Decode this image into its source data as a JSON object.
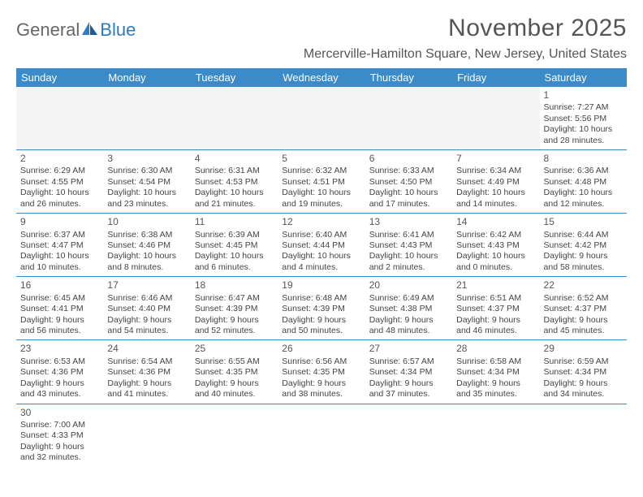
{
  "brand": {
    "part1": "General",
    "part2": "Blue"
  },
  "title": "November 2025",
  "location": "Mercerville-Hamilton Square, New Jersey, United States",
  "colors": {
    "header_bg": "#3b8bc8",
    "header_text": "#ffffff",
    "accent": "#2f7bbf"
  },
  "weekdays": [
    "Sunday",
    "Monday",
    "Tuesday",
    "Wednesday",
    "Thursday",
    "Friday",
    "Saturday"
  ],
  "cells": [
    [
      null,
      null,
      null,
      null,
      null,
      null,
      {
        "day": "1",
        "sunrise": "Sunrise: 7:27 AM",
        "sunset": "Sunset: 5:56 PM",
        "daylight": "Daylight: 10 hours and 28 minutes."
      }
    ],
    [
      {
        "day": "2",
        "sunrise": "Sunrise: 6:29 AM",
        "sunset": "Sunset: 4:55 PM",
        "daylight": "Daylight: 10 hours and 26 minutes."
      },
      {
        "day": "3",
        "sunrise": "Sunrise: 6:30 AM",
        "sunset": "Sunset: 4:54 PM",
        "daylight": "Daylight: 10 hours and 23 minutes."
      },
      {
        "day": "4",
        "sunrise": "Sunrise: 6:31 AM",
        "sunset": "Sunset: 4:53 PM",
        "daylight": "Daylight: 10 hours and 21 minutes."
      },
      {
        "day": "5",
        "sunrise": "Sunrise: 6:32 AM",
        "sunset": "Sunset: 4:51 PM",
        "daylight": "Daylight: 10 hours and 19 minutes."
      },
      {
        "day": "6",
        "sunrise": "Sunrise: 6:33 AM",
        "sunset": "Sunset: 4:50 PM",
        "daylight": "Daylight: 10 hours and 17 minutes."
      },
      {
        "day": "7",
        "sunrise": "Sunrise: 6:34 AM",
        "sunset": "Sunset: 4:49 PM",
        "daylight": "Daylight: 10 hours and 14 minutes."
      },
      {
        "day": "8",
        "sunrise": "Sunrise: 6:36 AM",
        "sunset": "Sunset: 4:48 PM",
        "daylight": "Daylight: 10 hours and 12 minutes."
      }
    ],
    [
      {
        "day": "9",
        "sunrise": "Sunrise: 6:37 AM",
        "sunset": "Sunset: 4:47 PM",
        "daylight": "Daylight: 10 hours and 10 minutes."
      },
      {
        "day": "10",
        "sunrise": "Sunrise: 6:38 AM",
        "sunset": "Sunset: 4:46 PM",
        "daylight": "Daylight: 10 hours and 8 minutes."
      },
      {
        "day": "11",
        "sunrise": "Sunrise: 6:39 AM",
        "sunset": "Sunset: 4:45 PM",
        "daylight": "Daylight: 10 hours and 6 minutes."
      },
      {
        "day": "12",
        "sunrise": "Sunrise: 6:40 AM",
        "sunset": "Sunset: 4:44 PM",
        "daylight": "Daylight: 10 hours and 4 minutes."
      },
      {
        "day": "13",
        "sunrise": "Sunrise: 6:41 AM",
        "sunset": "Sunset: 4:43 PM",
        "daylight": "Daylight: 10 hours and 2 minutes."
      },
      {
        "day": "14",
        "sunrise": "Sunrise: 6:42 AM",
        "sunset": "Sunset: 4:43 PM",
        "daylight": "Daylight: 10 hours and 0 minutes."
      },
      {
        "day": "15",
        "sunrise": "Sunrise: 6:44 AM",
        "sunset": "Sunset: 4:42 PM",
        "daylight": "Daylight: 9 hours and 58 minutes."
      }
    ],
    [
      {
        "day": "16",
        "sunrise": "Sunrise: 6:45 AM",
        "sunset": "Sunset: 4:41 PM",
        "daylight": "Daylight: 9 hours and 56 minutes."
      },
      {
        "day": "17",
        "sunrise": "Sunrise: 6:46 AM",
        "sunset": "Sunset: 4:40 PM",
        "daylight": "Daylight: 9 hours and 54 minutes."
      },
      {
        "day": "18",
        "sunrise": "Sunrise: 6:47 AM",
        "sunset": "Sunset: 4:39 PM",
        "daylight": "Daylight: 9 hours and 52 minutes."
      },
      {
        "day": "19",
        "sunrise": "Sunrise: 6:48 AM",
        "sunset": "Sunset: 4:39 PM",
        "daylight": "Daylight: 9 hours and 50 minutes."
      },
      {
        "day": "20",
        "sunrise": "Sunrise: 6:49 AM",
        "sunset": "Sunset: 4:38 PM",
        "daylight": "Daylight: 9 hours and 48 minutes."
      },
      {
        "day": "21",
        "sunrise": "Sunrise: 6:51 AM",
        "sunset": "Sunset: 4:37 PM",
        "daylight": "Daylight: 9 hours and 46 minutes."
      },
      {
        "day": "22",
        "sunrise": "Sunrise: 6:52 AM",
        "sunset": "Sunset: 4:37 PM",
        "daylight": "Daylight: 9 hours and 45 minutes."
      }
    ],
    [
      {
        "day": "23",
        "sunrise": "Sunrise: 6:53 AM",
        "sunset": "Sunset: 4:36 PM",
        "daylight": "Daylight: 9 hours and 43 minutes."
      },
      {
        "day": "24",
        "sunrise": "Sunrise: 6:54 AM",
        "sunset": "Sunset: 4:36 PM",
        "daylight": "Daylight: 9 hours and 41 minutes."
      },
      {
        "day": "25",
        "sunrise": "Sunrise: 6:55 AM",
        "sunset": "Sunset: 4:35 PM",
        "daylight": "Daylight: 9 hours and 40 minutes."
      },
      {
        "day": "26",
        "sunrise": "Sunrise: 6:56 AM",
        "sunset": "Sunset: 4:35 PM",
        "daylight": "Daylight: 9 hours and 38 minutes."
      },
      {
        "day": "27",
        "sunrise": "Sunrise: 6:57 AM",
        "sunset": "Sunset: 4:34 PM",
        "daylight": "Daylight: 9 hours and 37 minutes."
      },
      {
        "day": "28",
        "sunrise": "Sunrise: 6:58 AM",
        "sunset": "Sunset: 4:34 PM",
        "daylight": "Daylight: 9 hours and 35 minutes."
      },
      {
        "day": "29",
        "sunrise": "Sunrise: 6:59 AM",
        "sunset": "Sunset: 4:34 PM",
        "daylight": "Daylight: 9 hours and 34 minutes."
      }
    ],
    [
      {
        "day": "30",
        "sunrise": "Sunrise: 7:00 AM",
        "sunset": "Sunset: 4:33 PM",
        "daylight": "Daylight: 9 hours and 32 minutes."
      },
      null,
      null,
      null,
      null,
      null,
      null
    ]
  ]
}
